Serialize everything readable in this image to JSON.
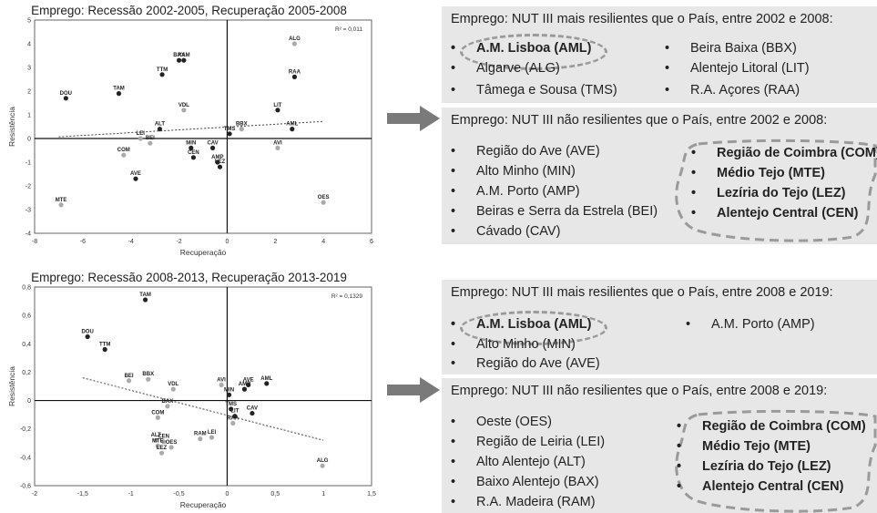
{
  "chart_data": [
    {
      "type": "scatter",
      "title": "Emprego: Recessão 2002-2005, Recuperação 2005-2008",
      "xlabel": "Recuperação",
      "ylabel": "Resistência",
      "xlim": [
        -8,
        6
      ],
      "ylim": [
        -4,
        5
      ],
      "xticks": [
        "-8",
        "-6",
        "-4",
        "-2",
        "0",
        "2",
        "4",
        "6"
      ],
      "yticks": [
        "5",
        "4",
        "3",
        "2",
        "1",
        "0",
        "-1",
        "-2",
        "-3",
        "-4"
      ],
      "xtick_values": [
        -8,
        -6,
        -4,
        -2,
        0,
        2,
        4,
        6
      ],
      "ytick_values": [
        5,
        4,
        3,
        2,
        1,
        0,
        -1,
        -2,
        -3,
        -4
      ],
      "r2": "R² = 0,011",
      "trend": {
        "x0": -7,
        "y0": 0.07,
        "x1": 4,
        "y1": 0.72
      },
      "points": [
        {
          "label": "ALG",
          "x": 2.8,
          "y": 4.0,
          "c": "light"
        },
        {
          "label": "BAX",
          "x": -2.0,
          "y": 3.3,
          "c": "dark"
        },
        {
          "label": "RAM",
          "x": -1.8,
          "y": 3.3,
          "c": "dark"
        },
        {
          "label": "TTM",
          "x": -2.7,
          "y": 2.7,
          "c": "dark"
        },
        {
          "label": "RAA",
          "x": 2.8,
          "y": 2.6,
          "c": "dark"
        },
        {
          "label": "DOU",
          "x": -6.7,
          "y": 1.7,
          "c": "dark"
        },
        {
          "label": "TAM",
          "x": -4.5,
          "y": 1.9,
          "c": "dark"
        },
        {
          "label": "VDL",
          "x": -1.8,
          "y": 1.2,
          "c": "light"
        },
        {
          "label": "LIT",
          "x": 2.1,
          "y": 1.2,
          "c": "dark"
        },
        {
          "label": "ALT",
          "x": -2.8,
          "y": 0.4,
          "c": "dark"
        },
        {
          "label": "AML",
          "x": 2.7,
          "y": 0.4,
          "c": "dark"
        },
        {
          "label": "BBX",
          "x": 0.6,
          "y": 0.4,
          "c": "light"
        },
        {
          "label": "TMS",
          "x": 0.1,
          "y": 0.2,
          "c": "dark"
        },
        {
          "label": "LEI",
          "x": -3.6,
          "y": 0.0,
          "c": "light"
        },
        {
          "label": "BEI",
          "x": -3.2,
          "y": -0.2,
          "c": "light"
        },
        {
          "label": "MIN",
          "x": -1.5,
          "y": -0.4,
          "c": "dark"
        },
        {
          "label": "CAV",
          "x": -0.6,
          "y": -0.4,
          "c": "dark"
        },
        {
          "label": "AVI",
          "x": 2.1,
          "y": -0.4,
          "c": "light"
        },
        {
          "label": "COM",
          "x": -4.3,
          "y": -0.7,
          "c": "light"
        },
        {
          "label": "CEN",
          "x": -1.4,
          "y": -0.8,
          "c": "dark"
        },
        {
          "label": "AMP",
          "x": -0.4,
          "y": -1.0,
          "c": "dark"
        },
        {
          "label": "LEZ",
          "x": -0.3,
          "y": -1.2,
          "c": "dark"
        },
        {
          "label": "AVE",
          "x": -3.8,
          "y": -1.7,
          "c": "dark"
        },
        {
          "label": "MTE",
          "x": -6.9,
          "y": -2.8,
          "c": "light"
        },
        {
          "label": "OES",
          "x": 4.0,
          "y": -2.7,
          "c": "light"
        }
      ]
    },
    {
      "type": "scatter",
      "title": "Emprego: Recessão 2008-2013, Recuperação 2013-2019",
      "xlabel": "Recuperação",
      "ylabel": "Resistência",
      "xlim": [
        -2,
        1.5
      ],
      "ylim": [
        -0.6,
        0.8
      ],
      "xticks": [
        "-2",
        "-1,5",
        "-1",
        "-0,5",
        "0",
        "0,5",
        "1",
        "1,5"
      ],
      "yticks": [
        "0,8",
        "0,6",
        "0,4",
        "0,2",
        "0",
        "-0,2",
        "-0,4",
        "-0,6"
      ],
      "xtick_values": [
        -2,
        -1.5,
        -1,
        -0.5,
        0,
        0.5,
        1,
        1.5
      ],
      "ytick_values": [
        0.8,
        0.6,
        0.4,
        0.2,
        0,
        -0.2,
        -0.4,
        -0.6
      ],
      "r2": "R² = 0,1329",
      "trend": {
        "x0": -1.5,
        "y0": 0.16,
        "x1": 1.0,
        "y1": -0.28
      },
      "points": [
        {
          "label": "TAM",
          "x": -0.85,
          "y": 0.71,
          "c": "dark"
        },
        {
          "label": "DOU",
          "x": -1.45,
          "y": 0.45,
          "c": "dark"
        },
        {
          "label": "TTM",
          "x": -1.27,
          "y": 0.36,
          "c": "dark"
        },
        {
          "label": "BEI",
          "x": -1.02,
          "y": 0.14,
          "c": "light"
        },
        {
          "label": "BBX",
          "x": -0.82,
          "y": 0.15,
          "c": "light"
        },
        {
          "label": "VDL",
          "x": -0.56,
          "y": 0.08,
          "c": "light"
        },
        {
          "label": "AVI",
          "x": -0.06,
          "y": 0.11,
          "c": "light"
        },
        {
          "label": "AVE",
          "x": 0.22,
          "y": 0.11,
          "c": "dark"
        },
        {
          "label": "AML",
          "x": 0.41,
          "y": 0.12,
          "c": "dark"
        },
        {
          "label": "AMP",
          "x": 0.18,
          "y": 0.08,
          "c": "dark"
        },
        {
          "label": "MIN",
          "x": 0.02,
          "y": 0.04,
          "c": "dark"
        },
        {
          "label": "BAX",
          "x": -0.62,
          "y": -0.04,
          "c": "light"
        },
        {
          "label": "TMS",
          "x": 0.04,
          "y": -0.06,
          "c": "dark"
        },
        {
          "label": "CAV",
          "x": 0.26,
          "y": -0.09,
          "c": "dark"
        },
        {
          "label": "LIT",
          "x": 0.08,
          "y": -0.11,
          "c": "dark"
        },
        {
          "label": "COM",
          "x": -0.72,
          "y": -0.12,
          "c": "light"
        },
        {
          "label": "RAA",
          "x": 0.06,
          "y": -0.16,
          "c": "light"
        },
        {
          "label": "RAM",
          "x": -0.28,
          "y": -0.27,
          "c": "light"
        },
        {
          "label": "LEI",
          "x": -0.16,
          "y": -0.26,
          "c": "light"
        },
        {
          "label": "ALT",
          "x": -0.74,
          "y": -0.28,
          "c": "light"
        },
        {
          "label": "CEN",
          "x": -0.66,
          "y": -0.29,
          "c": "light"
        },
        {
          "label": "MTE",
          "x": -0.72,
          "y": -0.32,
          "c": "light"
        },
        {
          "label": "OES",
          "x": -0.58,
          "y": -0.33,
          "c": "light"
        },
        {
          "label": "LEZ",
          "x": -0.68,
          "y": -0.37,
          "c": "light"
        },
        {
          "label": "ALG",
          "x": 0.99,
          "y": -0.46,
          "c": "light"
        }
      ]
    }
  ],
  "panels": {
    "p1": {
      "heading": "Emprego: NUT III mais resilientes que o País, entre 2002 e 2008:",
      "left": [
        "A.M. Lisboa (AML)",
        "Algarve (ALG)",
        "Tâmega e Sousa (TMS)"
      ],
      "right": [
        "Beira Baixa (BBX)",
        "Alentejo Litoral (LIT)",
        "R.A. Açores (RAA)"
      ]
    },
    "p2": {
      "heading": "Emprego: NUT III não resilientes que o País, entre 2002 e 2008:",
      "left": [
        "Região do Ave (AVE)",
        "Alto Minho (MIN)",
        "A.M. Porto (AMP)",
        "Beiras e Serra da Estrela (BEI)",
        "Cávado (CAV)"
      ],
      "right": [
        "Região de Coimbra (COM)",
        "Médio Tejo (MTE)",
        "Lezíria do Tejo (LEZ)",
        "Alentejo Central (CEN)"
      ]
    },
    "p3": {
      "heading": "Emprego: NUT III mais resilientes que o País, entre 2008 e 2019:",
      "left": [
        "A.M. Lisboa (AML)",
        "Alto Minho (MIN)",
        "Região do Ave (AVE)"
      ],
      "right": [
        "A.M. Porto (AMP)"
      ]
    },
    "p4": {
      "heading": "Emprego: NUT III não resilientes que o País, entre 2008 e 2019:",
      "left": [
        "Oeste (OES)",
        "Região de Leiria (LEI)",
        "Alto Alentejo (ALT)",
        "Baixo Alentejo (BAX)",
        "R.A. Madeira (RAM)"
      ],
      "right": [
        "Região de Coimbra (COM)",
        "Médio Tejo (MTE)",
        "Lezíria do Tejo (LEZ)",
        "Alentejo Central (CEN)"
      ]
    }
  },
  "colors": {
    "arrow": "#7a7a7a",
    "panel_bg": "#e7e7e7",
    "dash": "#9a9a9a",
    "point_dark": "#222222",
    "point_light": "#aaaaaa"
  }
}
